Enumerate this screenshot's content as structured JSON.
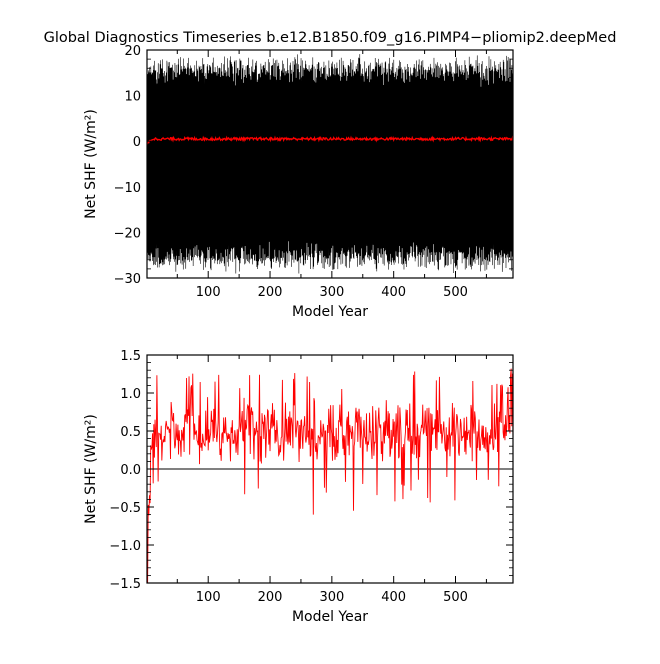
{
  "title": "Global Diagnostics Timeseries b.e12.B1850.f09_g16.PIMP4−pliomip2.deepMed",
  "colors": {
    "monthly": "#000000",
    "annual": "#ff0000",
    "zero_line": "#000000"
  },
  "chart_data": [
    {
      "type": "line",
      "xlabel": "Model Year",
      "ylabel": "Net SHF (W/m²)",
      "xlim": [
        1,
        593
      ],
      "ylim": [
        -30,
        20
      ],
      "xticks": [
        100,
        200,
        300,
        400,
        500
      ],
      "yticks": [
        -30,
        -20,
        -10,
        0,
        10,
        20
      ],
      "series": [
        {
          "color": "#000000",
          "x": [
            1,
            593
          ],
          "seasonal_min": -27,
          "seasonal_max": 17
        },
        {
          "color": "#ff0000",
          "x": [
            1,
            593
          ],
          "mean": 0.5
        }
      ]
    },
    {
      "type": "line",
      "xlabel": "Model Year",
      "ylabel": "Net SHF (W/m²)",
      "xlim": [
        1,
        593
      ],
      "ylim": [
        -1.5,
        1.5
      ],
      "xticks": [
        100,
        200,
        300,
        400,
        500
      ],
      "yticks": [
        -1.5,
        -1.0,
        -0.5,
        0.0,
        0.5,
        1.0,
        1.5
      ],
      "reference_line": 0.0,
      "series": [
        {
          "color": "#ff0000",
          "x": [
            1,
            593
          ],
          "mean": 0.5,
          "min": -1.5,
          "max": 1.32
        }
      ]
    }
  ]
}
